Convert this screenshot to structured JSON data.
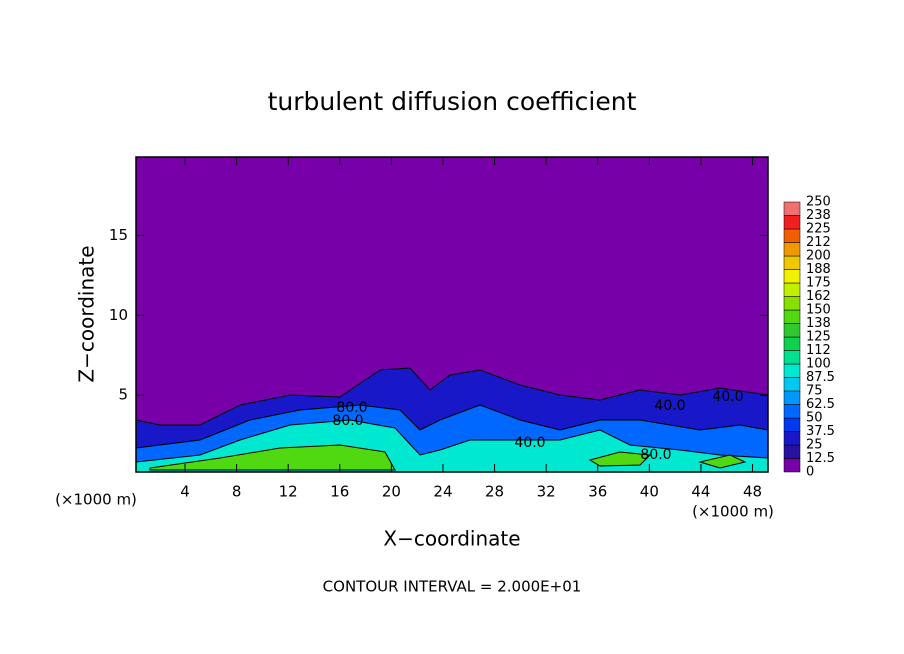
{
  "chart_data": {
    "type": "contour",
    "title": "turbulent diffusion coefficient",
    "x_label": "X−coordinate",
    "y_label": "Z−coordinate",
    "x_unit": "(×1000 m)",
    "y_unit": "(×1000 m)",
    "footer": "CONTOUR INTERVAL = 2.000E+01",
    "xlim": [
      0.2,
      49.2
    ],
    "xticks": [
      4,
      8,
      12,
      16,
      20,
      24,
      28,
      32,
      36,
      40,
      44,
      48
    ],
    "ylim": [
      0.2,
      19.9
    ],
    "yticks": [
      5,
      10,
      15
    ],
    "colorbar": {
      "ticks": [
        0,
        12.5,
        25,
        37.5,
        50,
        62.5,
        75,
        87.5,
        100,
        112,
        125,
        138,
        150,
        162,
        175,
        188,
        200,
        212,
        225,
        238,
        250
      ],
      "colors": [
        "#7800a8",
        "#2a10a0",
        "#1818c8",
        "#0038f0",
        "#0068ff",
        "#0098ff",
        "#00c8f0",
        "#00e8d0",
        "#00e090",
        "#10d050",
        "#30c830",
        "#50d810",
        "#88e000",
        "#c0f000",
        "#f0f000",
        "#f0c800",
        "#f09800",
        "#f06000",
        "#f02020",
        "#f07070"
      ]
    },
    "contour_labels": [
      "80.0",
      "80.0",
      "40.0",
      "40.0",
      "80.0",
      "40.0"
    ]
  }
}
